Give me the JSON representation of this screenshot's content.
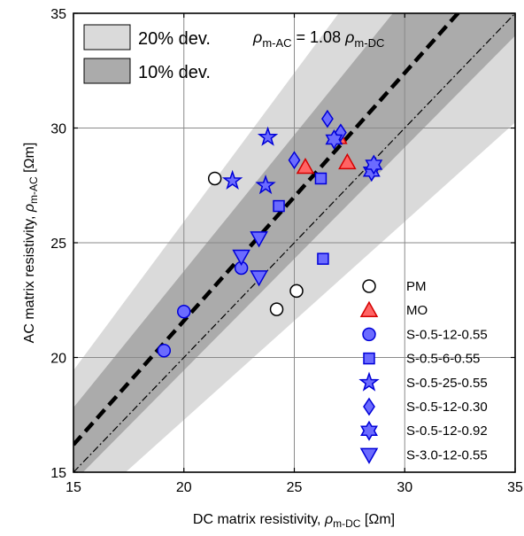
{
  "chart_data": {
    "type": "scatter",
    "xlabel_main": "DC matrix resistivity, ",
    "xlabel_sym": "ρ",
    "xlabel_sub": "m-DC",
    "xlabel_unit": "[Ωm]",
    "ylabel_main": "AC matrix resistivity, ",
    "ylabel_sym": "ρ",
    "ylabel_sub": "m-AC",
    "ylabel_unit": "[Ωm]",
    "xlim": [
      15,
      35
    ],
    "ylim": [
      15,
      35
    ],
    "xticks": [
      15,
      20,
      25,
      30,
      35
    ],
    "yticks": [
      15,
      20,
      25,
      30,
      35
    ],
    "grid": true,
    "fit_slope": 1.08,
    "equation": {
      "lhs_sym": "ρ",
      "lhs_sub": "m-AC",
      "eq": " = 1.08 ",
      "rhs_sym": "ρ",
      "rhs_sub": "m-DC"
    },
    "bands": [
      {
        "label": "20% dev.",
        "deviation": 0.2,
        "color": "#dadada"
      },
      {
        "label": "10% dev.",
        "deviation": 0.1,
        "color": "#ababab"
      }
    ],
    "series": [
      {
        "name": "PM",
        "marker": "circle",
        "fill": "#ffffff",
        "stroke": "#000000",
        "points": [
          [
            21.4,
            27.8
          ],
          [
            24.2,
            22.1
          ],
          [
            25.1,
            22.9
          ]
        ]
      },
      {
        "name": "MO",
        "marker": "triangle-up",
        "fill": "#ff6464",
        "stroke": "#d40000",
        "points": [
          [
            25.5,
            28.3
          ],
          [
            27.4,
            28.5
          ],
          [
            27.0,
            29.6
          ]
        ]
      },
      {
        "name": "S-0.5-12-0.55",
        "marker": "circle",
        "fill": "#6b6bff",
        "stroke": "#0000d8",
        "points": [
          [
            19.1,
            20.3
          ],
          [
            20.0,
            22.0
          ],
          [
            22.6,
            23.9
          ]
        ]
      },
      {
        "name": "S-0.5-6-0.55",
        "marker": "square",
        "fill": "#6b6bff",
        "stroke": "#0000d8",
        "points": [
          [
            24.3,
            26.6
          ],
          [
            26.2,
            27.8
          ],
          [
            26.3,
            24.3
          ]
        ]
      },
      {
        "name": "S-0.5-25-0.55",
        "marker": "star5",
        "fill": "#6b6bff",
        "stroke": "#0000d8",
        "points": [
          [
            22.2,
            27.7
          ],
          [
            23.7,
            27.5
          ],
          [
            23.8,
            29.6
          ]
        ]
      },
      {
        "name": "S-0.5-12-0.30",
        "marker": "diamond",
        "fill": "#6b6bff",
        "stroke": "#0000d8",
        "points": [
          [
            25.0,
            28.6
          ],
          [
            26.5,
            30.4
          ],
          [
            27.1,
            29.8
          ]
        ]
      },
      {
        "name": "S-0.5-12-0.92",
        "marker": "hexagram",
        "fill": "#6b6bff",
        "stroke": "#0000d8",
        "points": [
          [
            26.8,
            29.5
          ],
          [
            28.5,
            28.1
          ],
          [
            28.6,
            28.4
          ]
        ]
      },
      {
        "name": "S-3.0-12-0.55",
        "marker": "triangle-down",
        "fill": "#6b6bff",
        "stroke": "#0000d8",
        "points": [
          [
            22.6,
            24.4
          ],
          [
            23.4,
            23.5
          ],
          [
            23.4,
            25.2
          ]
        ]
      }
    ]
  }
}
